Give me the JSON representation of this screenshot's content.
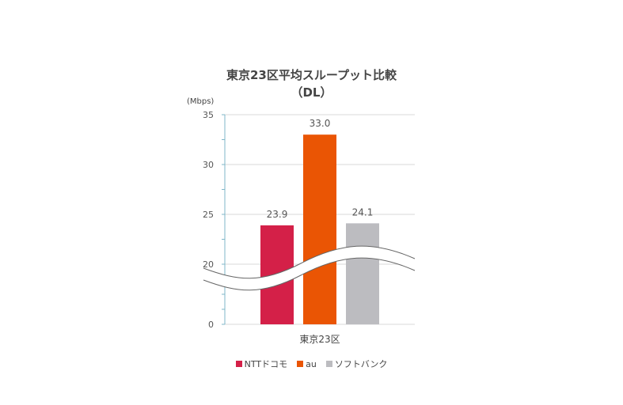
{
  "chart_data": {
    "type": "bar",
    "title": "東京23区平均スループット比較",
    "subtitle": "（DL）",
    "unit_label": "(Mbps)",
    "categories": [
      "東京23区"
    ],
    "series": [
      {
        "name": "NTTドコモ",
        "values": [
          23.9
        ],
        "color": "#d42048"
      },
      {
        "name": "au",
        "values": [
          33.0
        ],
        "color": "#ea5504"
      },
      {
        "name": "ソフトバンク",
        "values": [
          24.1
        ],
        "color": "#bcbcc0"
      }
    ],
    "y_ticks": [
      "0",
      "20",
      "25",
      "30",
      "35"
    ],
    "y_axis_break": "between 0 and 20",
    "grid": true,
    "legend_position": "bottom",
    "data_labels": [
      "23.9",
      "33.0",
      "24.1"
    ]
  }
}
